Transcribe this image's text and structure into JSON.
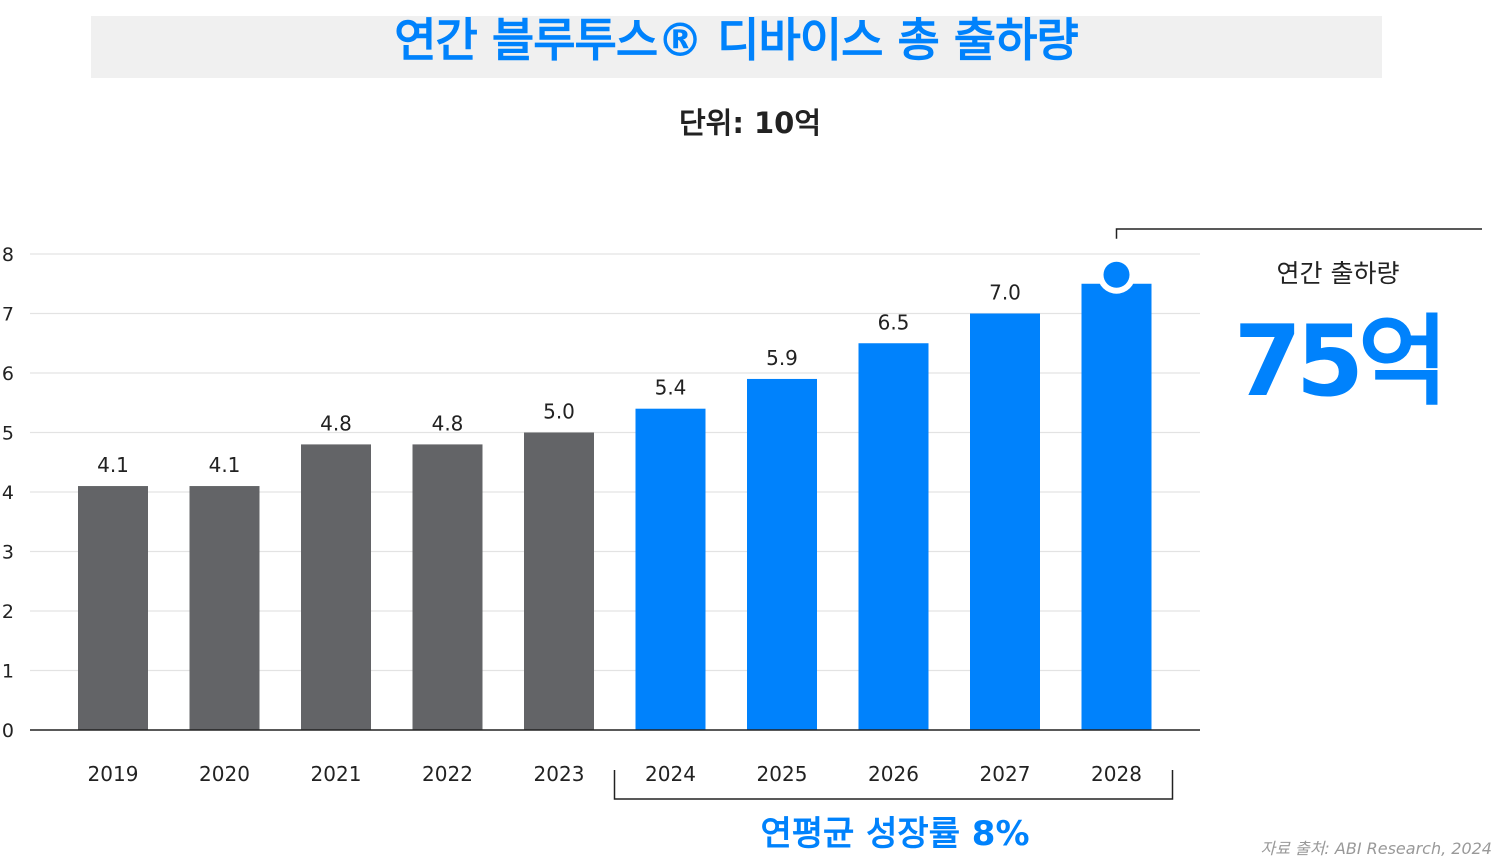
{
  "title": "연간 블루투스® 디바이스 총 출하량",
  "unit_label": "단위: 10억",
  "callout": {
    "label": "연간 출하량",
    "value": "75억"
  },
  "cagr_label": "연평균 성장률 8%",
  "source": "자료 출처: ABI Research, 2024",
  "colors": {
    "historical": "#636467",
    "forecast": "#0082fc",
    "title": "#0082fc",
    "grid": "#e3e3e3"
  },
  "chart_data": {
    "type": "bar",
    "categories": [
      "2019",
      "2020",
      "2021",
      "2022",
      "2023",
      "2024",
      "2025",
      "2026",
      "2027",
      "2028"
    ],
    "values": [
      4.1,
      4.1,
      4.8,
      4.8,
      5.0,
      5.4,
      5.9,
      6.5,
      7.0,
      7.5
    ],
    "data_labels": [
      "4.1",
      "4.1",
      "4.8",
      "4.8",
      "5.0",
      "5.4",
      "5.9",
      "6.5",
      "7.0",
      ""
    ],
    "bar_colors": [
      "#636467",
      "#636467",
      "#636467",
      "#636467",
      "#636467",
      "#0082fc",
      "#0082fc",
      "#0082fc",
      "#0082fc",
      "#0082fc"
    ],
    "yticks": [
      "0",
      "1",
      "2",
      "3",
      "4",
      "5",
      "6",
      "7",
      "8"
    ],
    "ylim": [
      0,
      8
    ],
    "grid": true,
    "cagr_bracket_range": [
      "2024",
      "2028"
    ],
    "highlight_category": "2028"
  }
}
